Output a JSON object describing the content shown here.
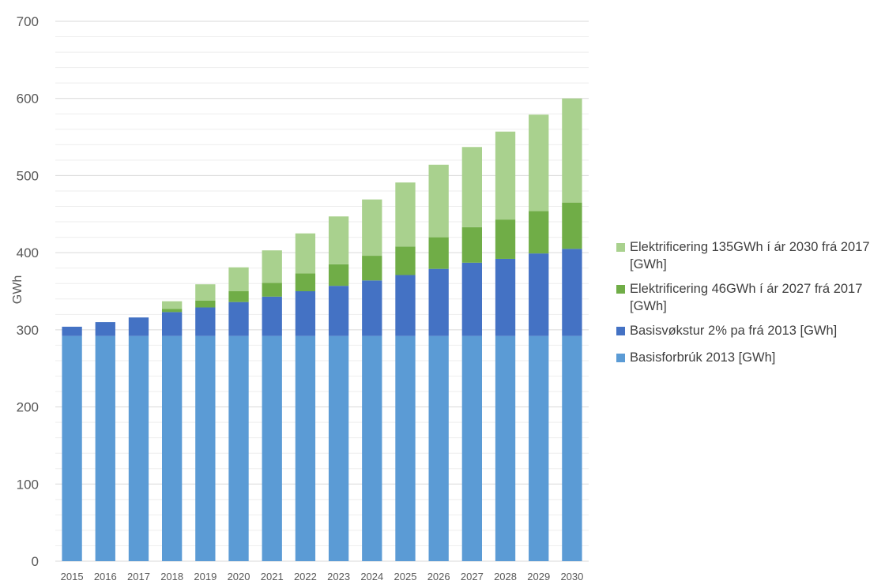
{
  "chart_data": {
    "type": "bar",
    "stacked": true,
    "ylabel": "GWh",
    "xlabel": "",
    "ylim": [
      0,
      700
    ],
    "yticks": [
      "0",
      "100",
      "200",
      "300",
      "400",
      "500",
      "600",
      "700"
    ],
    "grid": true,
    "legend_position": "right",
    "categories": [
      "2015",
      "2016",
      "2017",
      "2018",
      "2019",
      "2020",
      "2021",
      "2022",
      "2023",
      "2024",
      "2025",
      "2026",
      "2027",
      "2028",
      "2029",
      "2030"
    ],
    "series": [
      {
        "name": "Basisforbrúk 2013 [GWh]",
        "color": "#5B9BD5",
        "values": [
          292,
          292,
          292,
          292,
          292,
          292,
          292,
          292,
          292,
          292,
          292,
          292,
          292,
          292,
          292,
          292
        ]
      },
      {
        "name": "Basisvøkstur 2% pa frá 2013 [GWh]",
        "color": "#4472C4",
        "values": [
          12,
          18,
          24,
          31,
          37,
          44,
          51,
          58,
          65,
          72,
          79,
          87,
          95,
          100,
          107,
          113
        ]
      },
      {
        "name": "Elektrificering 46GWh í ár 2027 frá 2017 [GWh]",
        "color": "#70AD47",
        "values": [
          0,
          0,
          0,
          4,
          9,
          14,
          18,
          23,
          28,
          32,
          37,
          41,
          46,
          51,
          55,
          60
        ]
      },
      {
        "name": "Elektrificering 135GWh í ár 2030 frá 2017 [GWh]",
        "color": "#A9D18E",
        "values": [
          0,
          0,
          0,
          10,
          21,
          31,
          42,
          52,
          62,
          73,
          83,
          94,
          104,
          114,
          125,
          135
        ]
      }
    ]
  }
}
